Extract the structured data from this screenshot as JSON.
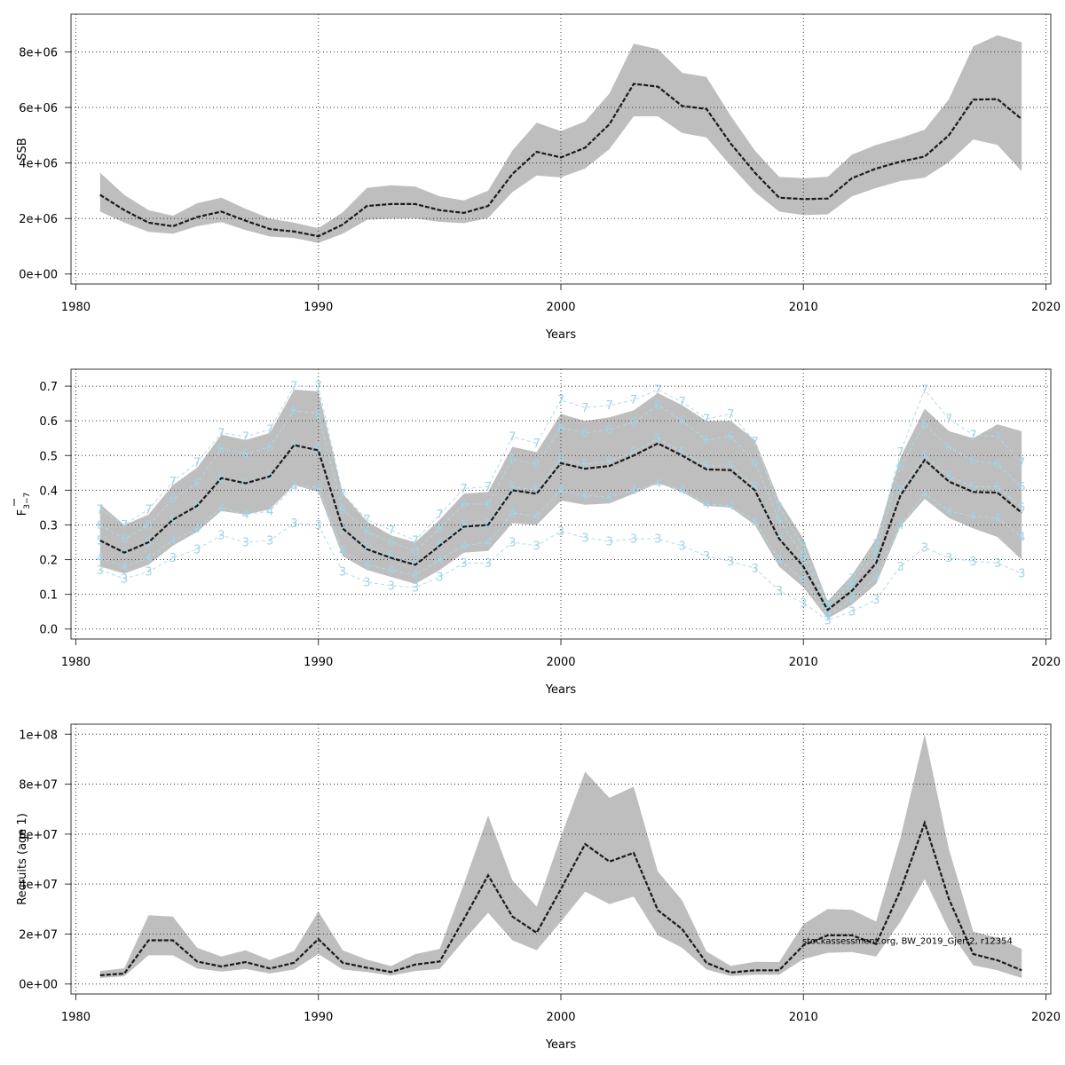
{
  "colors": {
    "band": "#bebebe",
    "estimate": "#1a1a1a",
    "age_lines": "#add8e6",
    "grid": "#333333"
  },
  "chart_data": [
    {
      "type": "line",
      "ylabel": "SSB",
      "xlabel": "Years",
      "xlim": [
        1980,
        2020
      ],
      "xticks": [
        "1980",
        "1990",
        "2000",
        "2010",
        "2020"
      ],
      "ylim": [
        0,
        9000000
      ],
      "yticks": [
        0,
        2000000,
        4000000,
        6000000,
        8000000
      ],
      "ytick_labels": [
        "0e+00",
        "2e+06",
        "4e+06",
        "6e+06",
        "8e+06"
      ],
      "grid": true,
      "x": [
        1981,
        1982,
        1983,
        1984,
        1985,
        1986,
        1987,
        1988,
        1989,
        1990,
        1991,
        1992,
        1993,
        1994,
        1995,
        1996,
        1997,
        1998,
        1999,
        2000,
        2001,
        2002,
        2003,
        2004,
        2005,
        2006,
        2007,
        2008,
        2009,
        2010,
        2011,
        2012,
        2013,
        2014,
        2015,
        2016,
        2017,
        2018,
        2019
      ],
      "series": [
        {
          "values": [
            2850000,
            2300000,
            1850000,
            1720000,
            2050000,
            2250000,
            1920000,
            1620000,
            1530000,
            1360000,
            1780000,
            2450000,
            2520000,
            2520000,
            2300000,
            2200000,
            2450000,
            3600000,
            4400000,
            4200000,
            4550000,
            5400000,
            6850000,
            6750000,
            6050000,
            5950000,
            4700000,
            3650000,
            2750000,
            2700000,
            2720000,
            3450000,
            3800000,
            4050000,
            4230000,
            5000000,
            6280000,
            6300000,
            5580000
          ]
        },
        {
          "name": "lower",
          "values": [
            2250000,
            1850000,
            1520000,
            1450000,
            1720000,
            1870000,
            1580000,
            1350000,
            1300000,
            1120000,
            1450000,
            1950000,
            2000000,
            2000000,
            1880000,
            1830000,
            2020000,
            2950000,
            3550000,
            3480000,
            3800000,
            4500000,
            5680000,
            5680000,
            5080000,
            4920000,
            3900000,
            2950000,
            2250000,
            2120000,
            2150000,
            2800000,
            3100000,
            3350000,
            3470000,
            4030000,
            4850000,
            4650000,
            3700000
          ]
        },
        {
          "name": "upper",
          "values": [
            3650000,
            2850000,
            2300000,
            2100000,
            2550000,
            2750000,
            2350000,
            2000000,
            1850000,
            1650000,
            2220000,
            3100000,
            3200000,
            3150000,
            2800000,
            2650000,
            3000000,
            4450000,
            5450000,
            5150000,
            5500000,
            6500000,
            8300000,
            8100000,
            7250000,
            7100000,
            5700000,
            4450000,
            3500000,
            3450000,
            3500000,
            4300000,
            4650000,
            4900000,
            5200000,
            6300000,
            8200000,
            8600000,
            8350000
          ]
        }
      ]
    },
    {
      "type": "line",
      "ylabel": "F",
      "ylabel_sub": "3−7",
      "xlabel": "Years",
      "xlim": [
        1980,
        2020
      ],
      "xticks": [
        "1980",
        "1990",
        "2000",
        "2010",
        "2020"
      ],
      "ylim": [
        0,
        0.72
      ],
      "yticks": [
        0,
        0.1,
        0.2,
        0.3,
        0.4,
        0.5,
        0.6,
        0.7
      ],
      "ytick_labels": [
        "0.0",
        "0.1",
        "0.2",
        "0.3",
        "0.4",
        "0.5",
        "0.6",
        "0.7"
      ],
      "grid": true,
      "x": [
        1981,
        1982,
        1983,
        1984,
        1985,
        1986,
        1987,
        1988,
        1989,
        1990,
        1991,
        1992,
        1993,
        1994,
        1995,
        1996,
        1997,
        1998,
        1999,
        2000,
        2001,
        2002,
        2003,
        2004,
        2005,
        2006,
        2007,
        2008,
        2009,
        2010,
        2011,
        2012,
        2013,
        2014,
        2015,
        2016,
        2017,
        2018,
        2019
      ],
      "series": [
        {
          "values": [
            0.255,
            0.22,
            0.25,
            0.315,
            0.355,
            0.435,
            0.42,
            0.44,
            0.53,
            0.515,
            0.29,
            0.23,
            0.205,
            0.185,
            0.24,
            0.295,
            0.3,
            0.4,
            0.39,
            0.478,
            0.462,
            0.47,
            0.5,
            0.535,
            0.5,
            0.46,
            0.458,
            0.4,
            0.26,
            0.18,
            0.055,
            0.11,
            0.19,
            0.385,
            0.487,
            0.425,
            0.395,
            0.393,
            0.335
          ]
        },
        {
          "name": "lower",
          "values": [
            0.18,
            0.16,
            0.185,
            0.24,
            0.28,
            0.34,
            0.33,
            0.345,
            0.415,
            0.395,
            0.21,
            0.17,
            0.15,
            0.13,
            0.17,
            0.22,
            0.225,
            0.305,
            0.3,
            0.37,
            0.358,
            0.362,
            0.39,
            0.42,
            0.395,
            0.355,
            0.35,
            0.3,
            0.18,
            0.12,
            0.03,
            0.07,
            0.13,
            0.295,
            0.375,
            0.32,
            0.29,
            0.265,
            0.2
          ]
        },
        {
          "name": "upper",
          "values": [
            0.36,
            0.3,
            0.33,
            0.415,
            0.465,
            0.56,
            0.545,
            0.565,
            0.69,
            0.685,
            0.39,
            0.31,
            0.27,
            0.25,
            0.315,
            0.39,
            0.395,
            0.525,
            0.51,
            0.62,
            0.6,
            0.61,
            0.63,
            0.68,
            0.645,
            0.6,
            0.6,
            0.545,
            0.37,
            0.26,
            0.08,
            0.155,
            0.26,
            0.495,
            0.635,
            0.57,
            0.55,
            0.59,
            0.57
          ]
        }
      ],
      "age_series": [
        {
          "name": "3",
          "values": [
            0.17,
            0.145,
            0.165,
            0.205,
            0.23,
            0.27,
            0.25,
            0.255,
            0.305,
            0.3,
            0.165,
            0.135,
            0.125,
            0.12,
            0.15,
            0.19,
            0.19,
            0.25,
            0.24,
            0.282,
            0.263,
            0.253,
            0.26,
            0.26,
            0.24,
            0.21,
            0.195,
            0.175,
            0.11,
            0.075,
            0.025,
            0.05,
            0.085,
            0.18,
            0.235,
            0.205,
            0.195,
            0.19,
            0.16
          ]
        },
        {
          "name": "4",
          "values": [
            0.205,
            0.18,
            0.205,
            0.255,
            0.29,
            0.35,
            0.33,
            0.34,
            0.41,
            0.41,
            0.225,
            0.185,
            0.17,
            0.155,
            0.2,
            0.24,
            0.25,
            0.335,
            0.325,
            0.4,
            0.385,
            0.38,
            0.4,
            0.42,
            0.4,
            0.36,
            0.355,
            0.31,
            0.2,
            0.14,
            0.04,
            0.085,
            0.15,
            0.3,
            0.39,
            0.34,
            0.325,
            0.32,
            0.265
          ]
        },
        {
          "name": "5",
          "values": [
            0.255,
            0.22,
            0.25,
            0.315,
            0.355,
            0.435,
            0.42,
            0.44,
            0.53,
            0.52,
            0.29,
            0.235,
            0.21,
            0.19,
            0.245,
            0.3,
            0.305,
            0.41,
            0.4,
            0.49,
            0.475,
            0.483,
            0.51,
            0.55,
            0.51,
            0.47,
            0.47,
            0.41,
            0.265,
            0.18,
            0.055,
            0.11,
            0.19,
            0.4,
            0.5,
            0.44,
            0.41,
            0.41,
            0.35
          ]
        },
        {
          "name": "6",
          "values": [
            0.3,
            0.26,
            0.3,
            0.375,
            0.42,
            0.52,
            0.505,
            0.525,
            0.63,
            0.62,
            0.345,
            0.28,
            0.25,
            0.225,
            0.29,
            0.36,
            0.36,
            0.49,
            0.475,
            0.58,
            0.565,
            0.575,
            0.595,
            0.645,
            0.6,
            0.545,
            0.555,
            0.48,
            0.315,
            0.21,
            0.065,
            0.13,
            0.22,
            0.47,
            0.59,
            0.525,
            0.485,
            0.475,
            0.41
          ]
        },
        {
          "name": "7",
          "values": [
            0.345,
            0.3,
            0.345,
            0.425,
            0.48,
            0.565,
            0.555,
            0.575,
            0.7,
            0.7,
            0.39,
            0.315,
            0.285,
            0.255,
            0.33,
            0.405,
            0.41,
            0.555,
            0.535,
            0.66,
            0.638,
            0.645,
            0.66,
            0.69,
            0.655,
            0.605,
            0.62,
            0.54,
            0.35,
            0.235,
            0.07,
            0.145,
            0.245,
            0.51,
            0.69,
            0.605,
            0.56,
            0.555,
            0.48
          ]
        }
      ]
    },
    {
      "type": "line",
      "ylabel": "Recruits (age 1)",
      "xlabel": "Years",
      "xlim": [
        1980,
        2020
      ],
      "xticks": [
        "1980",
        "1990",
        "2000",
        "2010",
        "2020"
      ],
      "ylim": [
        0,
        100000000
      ],
      "yticks": [
        0,
        20000000,
        40000000,
        60000000,
        80000000,
        100000000
      ],
      "ytick_labels": [
        "0e+00",
        "2e+07",
        "4e+07",
        "6e+07",
        "8e+07",
        "1e+08"
      ],
      "grid": true,
      "annotation": "stockassessment.org, BW_2019_Gjert2, r12354",
      "x": [
        1981,
        1982,
        1983,
        1984,
        1985,
        1986,
        1987,
        1988,
        1989,
        1990,
        1991,
        1992,
        1993,
        1994,
        1995,
        1996,
        1997,
        1998,
        1999,
        2000,
        2001,
        2002,
        2003,
        2004,
        2005,
        2006,
        2007,
        2008,
        2009,
        2010,
        2011,
        2012,
        2013,
        2014,
        2015,
        2016,
        2017,
        2018,
        2019
      ],
      "series": [
        {
          "values": [
            3500000,
            4200000,
            17500000,
            17500000,
            9000000,
            7000000,
            8800000,
            6200000,
            8500000,
            18000000,
            8500000,
            6500000,
            4800000,
            7800000,
            9000000,
            26000000,
            43500000,
            27000000,
            20500000,
            38000000,
            56000000,
            49000000,
            52500000,
            29500000,
            22000000,
            8500000,
            4600000,
            5500000,
            5500000,
            15500000,
            19500000,
            19500000,
            16000000,
            37500000,
            64500000,
            34000000,
            12000000,
            9500000,
            5500000
          ]
        },
        {
          "name": "lower",
          "values": [
            2400000,
            3100000,
            11500000,
            11500000,
            6200000,
            5000000,
            6000000,
            4200000,
            5800000,
            12000000,
            5800000,
            4800000,
            3400000,
            5200000,
            6000000,
            17500000,
            28500000,
            17500000,
            13500000,
            25000000,
            37000000,
            32000000,
            35000000,
            19500000,
            14500000,
            5800000,
            3200000,
            3700000,
            3700000,
            10000000,
            12500000,
            12800000,
            11000000,
            25000000,
            42000000,
            21500000,
            7500000,
            5500000,
            2400000
          ]
        },
        {
          "name": "upper",
          "values": [
            5200000,
            6300000,
            27500000,
            27000000,
            14500000,
            11000000,
            13500000,
            9600000,
            13200000,
            29000000,
            13500000,
            9800000,
            7200000,
            12000000,
            14000000,
            40000000,
            67500000,
            41500000,
            31000000,
            59000000,
            85000000,
            74500000,
            79000000,
            45000000,
            33500000,
            13000000,
            7300000,
            8900000,
            8800000,
            24000000,
            30000000,
            29700000,
            25000000,
            58500000,
            100000000,
            54000000,
            21000000,
            18500000,
            14000000
          ]
        }
      ]
    }
  ]
}
